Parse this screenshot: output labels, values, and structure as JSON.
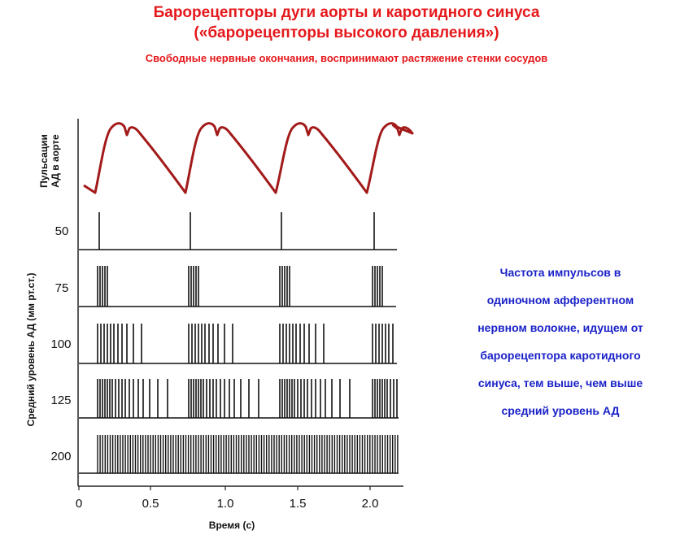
{
  "header": {
    "title_line1": "Барорецепторы  дуги аорты и каротидного синуса",
    "title_line2": "(«барорецепторы высокого давления»)",
    "subtitle": "Свободные нервные окончания, воспринимают растяжение стенки сосудов"
  },
  "figure": {
    "pulse_label_line1": "Пульсации",
    "pulse_label_line2": "АД в аорте",
    "y_axis_label": "Средний уровень АД (мм рт.ст.)",
    "x_axis_label": "Время (с)",
    "x_ticks": [
      "0",
      "0.5",
      "1.0",
      "1.5",
      "2.0"
    ],
    "pressure_levels": [
      "50",
      "75",
      "100",
      "125",
      "200"
    ],
    "colors": {
      "pulse_wave": "#a31a1a",
      "spikes": "#111111"
    }
  },
  "description": {
    "lines": [
      "Частота импульсов в",
      "одиночном афферентном",
      "нервном волокне, идущем от",
      "барорецептора каротидного",
      "синуса, тем выше, чем выше",
      "средний уровень  АД"
    ]
  }
}
